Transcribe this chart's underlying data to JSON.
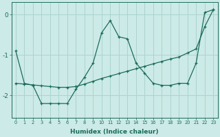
{
  "xlabel": "Humidex (Indice chaleur)",
  "xlim": [
    -0.5,
    23.5
  ],
  "ylim": [
    -2.55,
    0.3
  ],
  "background_color": "#cceae7",
  "grid_color": "#aad4cf",
  "line_color": "#1a6b5a",
  "line1_x": [
    0,
    1,
    2,
    3,
    4,
    5,
    6,
    7,
    8,
    9,
    10,
    11,
    12,
    13,
    14,
    15,
    16,
    17,
    18,
    19,
    20,
    21,
    22,
    23
  ],
  "line1_y": [
    -0.9,
    -1.7,
    -1.75,
    -2.2,
    -2.2,
    -2.2,
    -2.2,
    -1.85,
    -1.55,
    -1.2,
    -0.45,
    -0.15,
    -0.55,
    -0.6,
    -1.2,
    -1.45,
    -1.7,
    -1.75,
    -1.75,
    -1.7,
    -1.7,
    -1.2,
    0.05,
    0.12
  ],
  "line2_x": [
    0,
    1,
    2,
    3,
    4,
    5,
    6,
    7,
    8,
    9,
    10,
    11,
    12,
    13,
    14,
    15,
    16,
    17,
    18,
    19,
    20,
    21,
    22,
    23
  ],
  "line2_y": [
    -1.7,
    -1.72,
    -1.74,
    -1.76,
    -1.78,
    -1.8,
    -1.8,
    -1.78,
    -1.72,
    -1.65,
    -1.58,
    -1.52,
    -1.46,
    -1.4,
    -1.34,
    -1.28,
    -1.22,
    -1.16,
    -1.1,
    -1.05,
    -0.95,
    -0.85,
    -0.3,
    0.12
  ],
  "yticks": [
    0,
    -1,
    -2
  ],
  "xticks": [
    0,
    1,
    2,
    3,
    4,
    5,
    6,
    7,
    8,
    9,
    10,
    11,
    12,
    13,
    14,
    15,
    16,
    17,
    18,
    19,
    20,
    21,
    22,
    23
  ]
}
